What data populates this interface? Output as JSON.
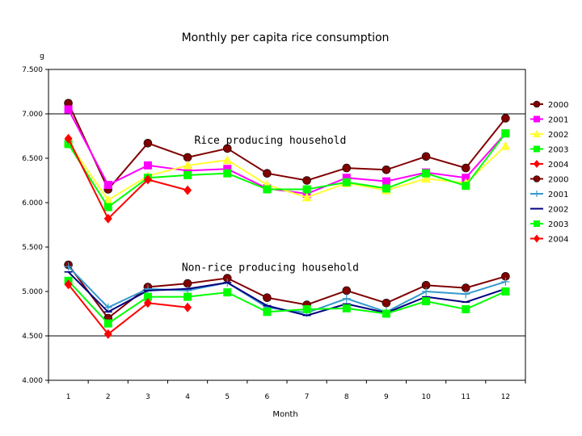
{
  "chart_data": {
    "type": "line",
    "title": "Monthly per capita rice consumption",
    "unit_label": "g",
    "xlabel": "Month",
    "ylabel": "",
    "categories": [
      "1",
      "2",
      "3",
      "4",
      "5",
      "6",
      "7",
      "8",
      "9",
      "10",
      "11",
      "12"
    ],
    "ylim": [
      4.0,
      7.5
    ],
    "yticks": [
      "4.000",
      "4.500",
      "5.000",
      "5.500",
      "6.000",
      "6.500",
      "7.000",
      "7.500"
    ],
    "ytick_values": [
      4.0,
      4.5,
      5.0,
      5.5,
      6.0,
      6.5,
      7.0,
      7.5
    ],
    "gridlines": [
      4.5,
      7.0
    ],
    "legend_position": "right",
    "annotations": [
      {
        "text": "Rice producing household",
        "x": 6,
        "y": 6.7
      },
      {
        "text": "Non-rice producing household",
        "x": 6,
        "y": 5.27
      }
    ],
    "series": [
      {
        "name": "2000",
        "group": "rice",
        "color": "#800000",
        "marker": "circle",
        "values": [
          7.12,
          6.15,
          6.67,
          6.51,
          6.61,
          6.33,
          6.25,
          6.39,
          6.37,
          6.52,
          6.39,
          6.95
        ]
      },
      {
        "name": "2001",
        "group": "rice",
        "color": "#ff00ff",
        "marker": "square",
        "values": [
          7.05,
          6.2,
          6.42,
          6.36,
          6.38,
          6.16,
          6.1,
          6.28,
          6.24,
          6.34,
          6.28,
          6.78
        ]
      },
      {
        "name": "2002",
        "group": "rice",
        "color": "#ffff33",
        "marker": "triangle",
        "values": [
          6.68,
          6.03,
          6.3,
          6.42,
          6.48,
          6.2,
          6.06,
          6.22,
          6.14,
          6.27,
          6.22,
          6.64
        ]
      },
      {
        "name": "2003",
        "group": "rice",
        "color": "#00ff00",
        "marker": "square",
        "values": [
          6.66,
          5.95,
          6.28,
          6.31,
          6.33,
          6.15,
          6.15,
          6.23,
          6.16,
          6.33,
          6.19,
          6.78
        ]
      },
      {
        "name": "2004",
        "group": "rice",
        "color": "#ff0000",
        "marker": "diamond",
        "values": [
          6.72,
          5.82,
          6.26,
          6.14,
          null,
          null,
          null,
          null,
          null,
          null,
          null,
          null
        ]
      },
      {
        "name": "2000",
        "group": "non-rice",
        "color": "#800000",
        "marker": "circle",
        "values": [
          5.3,
          4.7,
          5.05,
          5.09,
          5.15,
          4.93,
          4.85,
          5.01,
          4.87,
          5.07,
          5.04,
          5.17
        ]
      },
      {
        "name": "2001",
        "group": "non-rice",
        "color": "#3399cc",
        "marker": "plus",
        "values": [
          5.28,
          4.82,
          5.03,
          5.01,
          5.1,
          4.82,
          4.76,
          4.92,
          4.77,
          5.0,
          4.97,
          5.11
        ]
      },
      {
        "name": "2002",
        "group": "non-rice",
        "color": "#000080",
        "marker": "dash",
        "values": [
          5.22,
          4.77,
          5.01,
          5.03,
          5.1,
          4.84,
          4.73,
          4.86,
          4.76,
          4.94,
          4.88,
          5.03
        ]
      },
      {
        "name": "2003",
        "group": "non-rice",
        "color": "#00ff00",
        "marker": "square",
        "values": [
          5.12,
          4.64,
          4.94,
          4.94,
          4.99,
          4.77,
          4.8,
          4.81,
          4.75,
          4.89,
          4.8,
          5.0
        ]
      },
      {
        "name": "2004",
        "group": "non-rice",
        "color": "#ff0000",
        "marker": "diamond",
        "values": [
          5.08,
          4.52,
          4.87,
          4.82,
          null,
          null,
          null,
          null,
          null,
          null,
          null,
          null
        ]
      }
    ]
  }
}
